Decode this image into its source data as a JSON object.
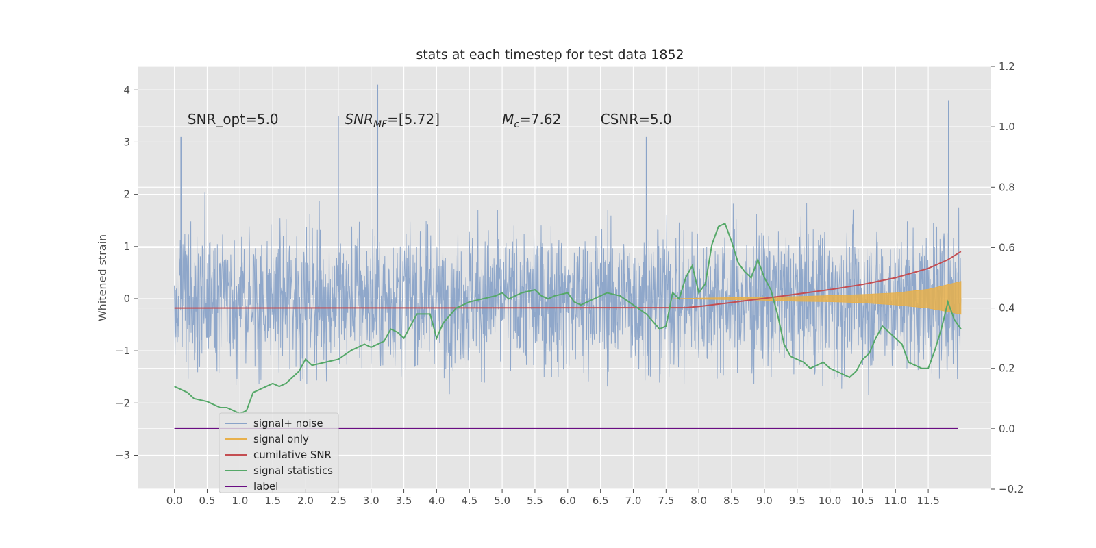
{
  "chart_data": {
    "type": "line",
    "title": "stats at each timestep for test data 1852",
    "ylabel": "Whitened strain",
    "xlabel": "",
    "xlim": [
      -0.55,
      12.45
    ],
    "ylim_left": [
      -3.65,
      4.45
    ],
    "ylim_right": [
      -0.2,
      1.2
    ],
    "grid": true,
    "legend_position": "lower-left",
    "x_ticks": [
      "0.0",
      "0.5",
      "1.0",
      "1.5",
      "2.0",
      "2.5",
      "3.0",
      "3.5",
      "4.0",
      "4.5",
      "5.0",
      "5.5",
      "6.0",
      "6.5",
      "7.0",
      "7.5",
      "8.0",
      "8.5",
      "9.0",
      "9.5",
      "10.0",
      "10.5",
      "11.0",
      "11.5"
    ],
    "y_left_ticks": [
      "4",
      "3",
      "2",
      "1",
      "0",
      "−1",
      "−2",
      "−3"
    ],
    "y_right_ticks": [
      "1.2",
      "1.0",
      "0.8",
      "0.6",
      "0.4",
      "0.2",
      "0.0",
      "−0.2"
    ],
    "annotations": [
      {
        "text": "SNR_opt=5.0",
        "x": 0.2,
        "y": 3.35
      },
      {
        "text": "SNR_MF=[5.72]",
        "x": 2.6,
        "y": 3.35
      },
      {
        "text": "M_c=7.62",
        "x": 5.0,
        "y": 3.35
      },
      {
        "text": "CSNR=5.0",
        "x": 6.5,
        "y": 3.35
      }
    ],
    "series": [
      {
        "name": "signal+ noise",
        "axis": "left",
        "color": "#8aa3c8",
        "x_range": [
          0,
          12.0
        ],
        "envelope_upper": 2.2,
        "envelope_lower": -2.1,
        "notable_peaks": [
          [
            0.1,
            3.1
          ],
          [
            3.1,
            4.1
          ],
          [
            11.81,
            3.8
          ],
          [
            7.2,
            3.1
          ],
          [
            2.5,
            3.5
          ]
        ]
      },
      {
        "name": "signal only",
        "axis": "left",
        "color": "#e8b04b",
        "x": [
          7.6,
          8.0,
          8.5,
          9.0,
          9.5,
          10.0,
          10.5,
          11.0,
          11.5,
          12.0
        ],
        "upper": [
          0.0,
          0.01,
          0.02,
          0.03,
          0.04,
          0.06,
          0.08,
          0.11,
          0.18,
          0.33
        ],
        "lower": [
          0.0,
          -0.01,
          -0.02,
          -0.03,
          -0.05,
          -0.06,
          -0.08,
          -0.12,
          -0.18,
          -0.3
        ]
      },
      {
        "name": "cumilative SNR",
        "axis": "right",
        "color": "#c44e52",
        "x": [
          0,
          7.8,
          8.0,
          8.5,
          9.0,
          9.5,
          10.0,
          10.5,
          11.0,
          11.5,
          11.8,
          12.0
        ],
        "values": [
          0.4,
          0.401,
          0.405,
          0.418,
          0.432,
          0.446,
          0.461,
          0.478,
          0.5,
          0.531,
          0.56,
          0.587
        ]
      },
      {
        "name": "signal statistics",
        "axis": "right",
        "color": "#55a868",
        "x": [
          0.0,
          0.2,
          0.3,
          0.5,
          0.7,
          0.8,
          1.0,
          1.1,
          1.2,
          1.4,
          1.5,
          1.6,
          1.7,
          1.9,
          2.0,
          2.1,
          2.3,
          2.5,
          2.7,
          2.9,
          3.0,
          3.2,
          3.3,
          3.4,
          3.5,
          3.6,
          3.7,
          3.9,
          4.0,
          4.1,
          4.3,
          4.4,
          4.5,
          4.7,
          4.9,
          5.0,
          5.1,
          5.3,
          5.5,
          5.6,
          5.7,
          5.8,
          6.0,
          6.1,
          6.2,
          6.4,
          6.6,
          6.8,
          7.0,
          7.2,
          7.4,
          7.5,
          7.6,
          7.7,
          7.8,
          7.9,
          8.0,
          8.1,
          8.2,
          8.3,
          8.4,
          8.5,
          8.6,
          8.7,
          8.8,
          8.9,
          9.0,
          9.1,
          9.2,
          9.3,
          9.4,
          9.6,
          9.7,
          9.9,
          10.0,
          10.2,
          10.3,
          10.4,
          10.5,
          10.6,
          10.7,
          10.8,
          10.9,
          11.1,
          11.2,
          11.4,
          11.5,
          11.6,
          11.7,
          11.8,
          11.9,
          12.0
        ],
        "values": [
          0.14,
          0.12,
          0.1,
          0.09,
          0.07,
          0.07,
          0.05,
          0.06,
          0.12,
          0.14,
          0.15,
          0.14,
          0.15,
          0.19,
          0.23,
          0.21,
          0.22,
          0.23,
          0.26,
          0.28,
          0.27,
          0.29,
          0.33,
          0.32,
          0.3,
          0.34,
          0.38,
          0.38,
          0.3,
          0.35,
          0.4,
          0.41,
          0.42,
          0.43,
          0.44,
          0.45,
          0.43,
          0.45,
          0.46,
          0.44,
          0.43,
          0.44,
          0.45,
          0.42,
          0.41,
          0.43,
          0.45,
          0.44,
          0.41,
          0.38,
          0.33,
          0.34,
          0.45,
          0.43,
          0.5,
          0.54,
          0.45,
          0.48,
          0.61,
          0.67,
          0.68,
          0.62,
          0.55,
          0.52,
          0.5,
          0.56,
          0.5,
          0.46,
          0.38,
          0.28,
          0.24,
          0.22,
          0.2,
          0.22,
          0.2,
          0.18,
          0.17,
          0.19,
          0.23,
          0.25,
          0.3,
          0.34,
          0.32,
          0.28,
          0.22,
          0.2,
          0.2,
          0.26,
          0.33,
          0.42,
          0.36,
          0.33
        ]
      },
      {
        "name": "label",
        "axis": "right",
        "color": "#6a0d83",
        "x": [
          0,
          11.95
        ],
        "values": [
          0.0,
          0.0
        ]
      }
    ],
    "legend_ghost_text": "cumilative SNR"
  }
}
